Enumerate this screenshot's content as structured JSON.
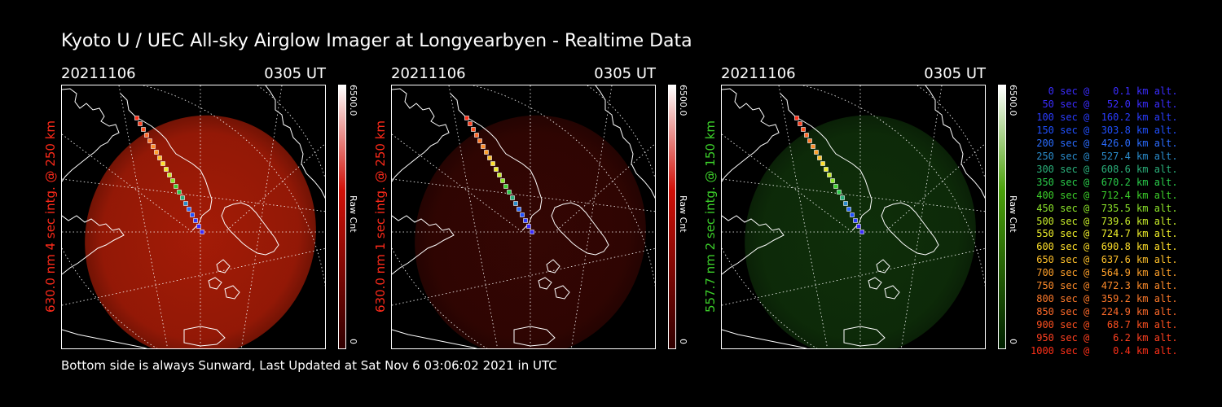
{
  "title": "Kyoto U / UEC All-sky Airglow Imager at Longyearbyen - Realtime Data",
  "panels": [
    {
      "date": "20211106",
      "time": "0305 UT",
      "vlabel": "630.0 nm 4 sec intg. @ 250 km",
      "vcolor": "#ff2a1a",
      "cbar_max": "6500.0",
      "cbar_unit": "Raw Cnt",
      "cbar_min": "0",
      "cbar_top": "#ffffff",
      "cbar_bottom": "#300000",
      "cbar_mid": "#d01008",
      "glow": "#c02008",
      "glow_opacity": 0.85
    },
    {
      "date": "20211106",
      "time": "0305 UT",
      "vlabel": "630.0 nm 1 sec intg. @ 250 km",
      "vcolor": "#ff2a1a",
      "cbar_max": "6500.0",
      "cbar_unit": "Raw Cnt",
      "cbar_min": "0",
      "cbar_top": "#ffffff",
      "cbar_bottom": "#300000",
      "cbar_mid": "#d01008",
      "glow": "#4a0804",
      "glow_opacity": 0.7
    },
    {
      "date": "20211106",
      "time": "0305 UT",
      "vlabel": "557.7 nm 2 sec intg. @ 150 km",
      "vcolor": "#3ccf2a",
      "cbar_max": "6500.0",
      "cbar_unit": "Raw Cnt",
      "cbar_min": "0",
      "cbar_top": "#ffffff",
      "cbar_bottom": "#002000",
      "cbar_mid": "#4aa00a",
      "glow": "#123a0c",
      "glow_opacity": 0.8
    }
  ],
  "legend": [
    {
      "text": "   0 sec @    0.1 km alt.",
      "color": "#3a2cff"
    },
    {
      "text": "  50 sec @   52.0 km alt.",
      "color": "#3a2cff"
    },
    {
      "text": " 100 sec @  160.2 km alt.",
      "color": "#2a3cff"
    },
    {
      "text": " 150 sec @  303.8 km alt.",
      "color": "#2050ff"
    },
    {
      "text": " 200 sec @  426.0 km alt.",
      "color": "#2a6cff"
    },
    {
      "text": " 250 sec @  527.4 km alt.",
      "color": "#2a8ccc"
    },
    {
      "text": " 300 sec @  608.6 km alt.",
      "color": "#2aaf7a"
    },
    {
      "text": " 350 sec @  670.2 km alt.",
      "color": "#2acc4a"
    },
    {
      "text": " 400 sec @  712.4 km alt.",
      "color": "#3ccf2a"
    },
    {
      "text": " 450 sec @  735.5 km alt.",
      "color": "#8ce42a"
    },
    {
      "text": " 500 sec @  739.6 km alt.",
      "color": "#c8ec2a"
    },
    {
      "text": " 550 sec @  724.7 km alt.",
      "color": "#f0f02a"
    },
    {
      "text": " 600 sec @  690.8 km alt.",
      "color": "#ffe02a"
    },
    {
      "text": " 650 sec @  637.6 km alt.",
      "color": "#ffc02a"
    },
    {
      "text": " 700 sec @  564.9 km alt.",
      "color": "#ffa02a"
    },
    {
      "text": " 750 sec @  472.3 km alt.",
      "color": "#ff8c2a"
    },
    {
      "text": " 800 sec @  359.2 km alt.",
      "color": "#ff7a2a"
    },
    {
      "text": " 850 sec @  224.9 km alt.",
      "color": "#ff6a2a"
    },
    {
      "text": " 900 sec @   68.7 km alt.",
      "color": "#ff5020"
    },
    {
      "text": " 950 sec @    6.2 km alt.",
      "color": "#ff4020"
    },
    {
      "text": "1000 sec @    0.4 km alt.",
      "color": "#ff3018"
    }
  ],
  "footer": "Bottom side is always Sunward, Last Updated at Sat Nov  6 03:06:02 2021 in UTC"
}
